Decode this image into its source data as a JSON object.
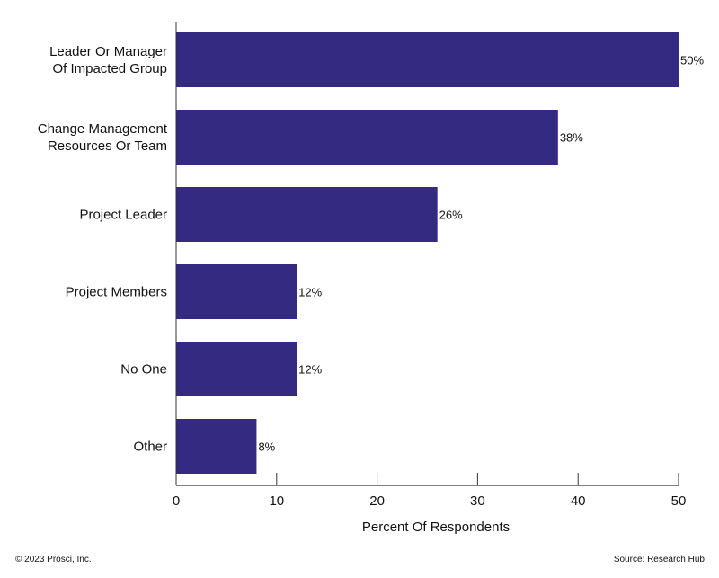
{
  "chart_data": {
    "type": "bar",
    "orientation": "horizontal",
    "categories": [
      [
        "Leader Or Manager",
        "Of Impacted Group"
      ],
      [
        "Change Management",
        "Resources Or Team"
      ],
      [
        "Project Leader"
      ],
      [
        "Project Members"
      ],
      [
        "No One"
      ],
      [
        "Other"
      ]
    ],
    "values": [
      50,
      38,
      26,
      12,
      12,
      8
    ],
    "data_labels": [
      "50%",
      "38%",
      "26%",
      "12%",
      "12%",
      "8%"
    ],
    "xlabel": "Percent Of Respondents",
    "ylabel": "",
    "xlim": [
      0,
      50
    ],
    "xticks": [
      0,
      10,
      20,
      30,
      40,
      50
    ],
    "grid": false,
    "bar_color": "#352a82"
  },
  "footer": {
    "copyright": "© 2023 Prosci, Inc.",
    "source": "Source: Research Hub"
  }
}
